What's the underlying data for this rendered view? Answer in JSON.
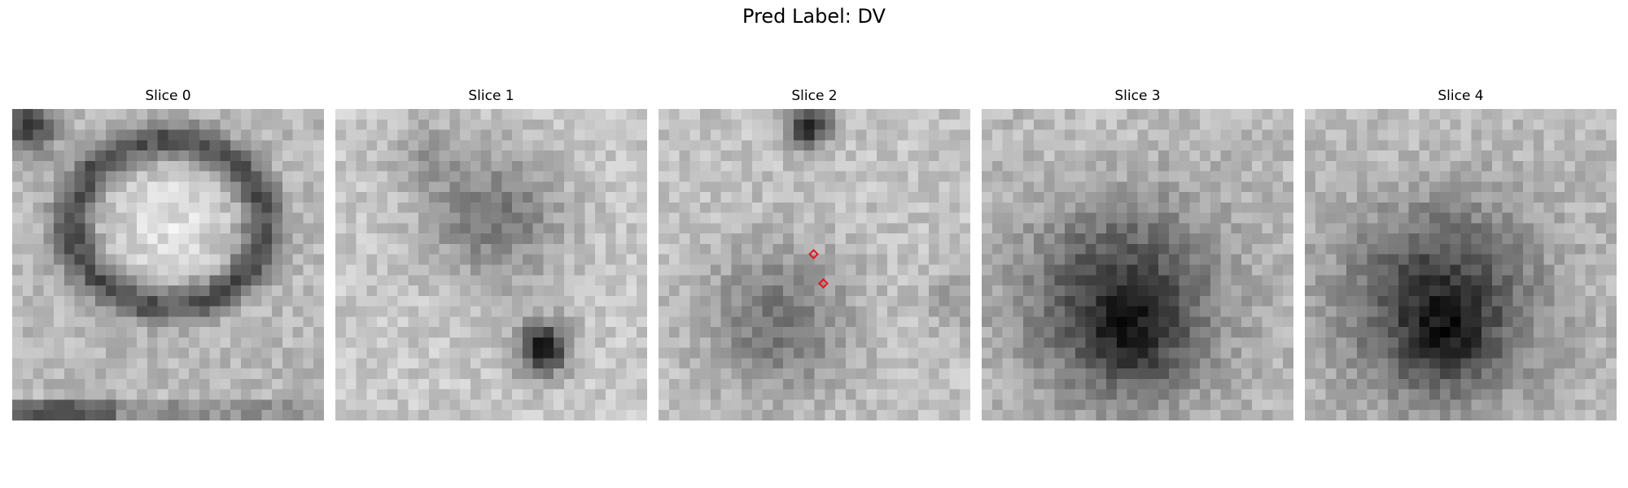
{
  "figure": {
    "suptitle": "Pred Label: DV",
    "panels": [
      {
        "title": "Slice 0",
        "pattern": "ring"
      },
      {
        "title": "Slice 1",
        "pattern": "blob-and-dot"
      },
      {
        "title": "Slice 2",
        "pattern": "faint-blob",
        "markers": 2
      },
      {
        "title": "Slice 3",
        "pattern": "dark-blob"
      },
      {
        "title": "Slice 4",
        "pattern": "dark-blob"
      }
    ],
    "colormap": "grayscale",
    "marker_color": "#e8121b"
  }
}
